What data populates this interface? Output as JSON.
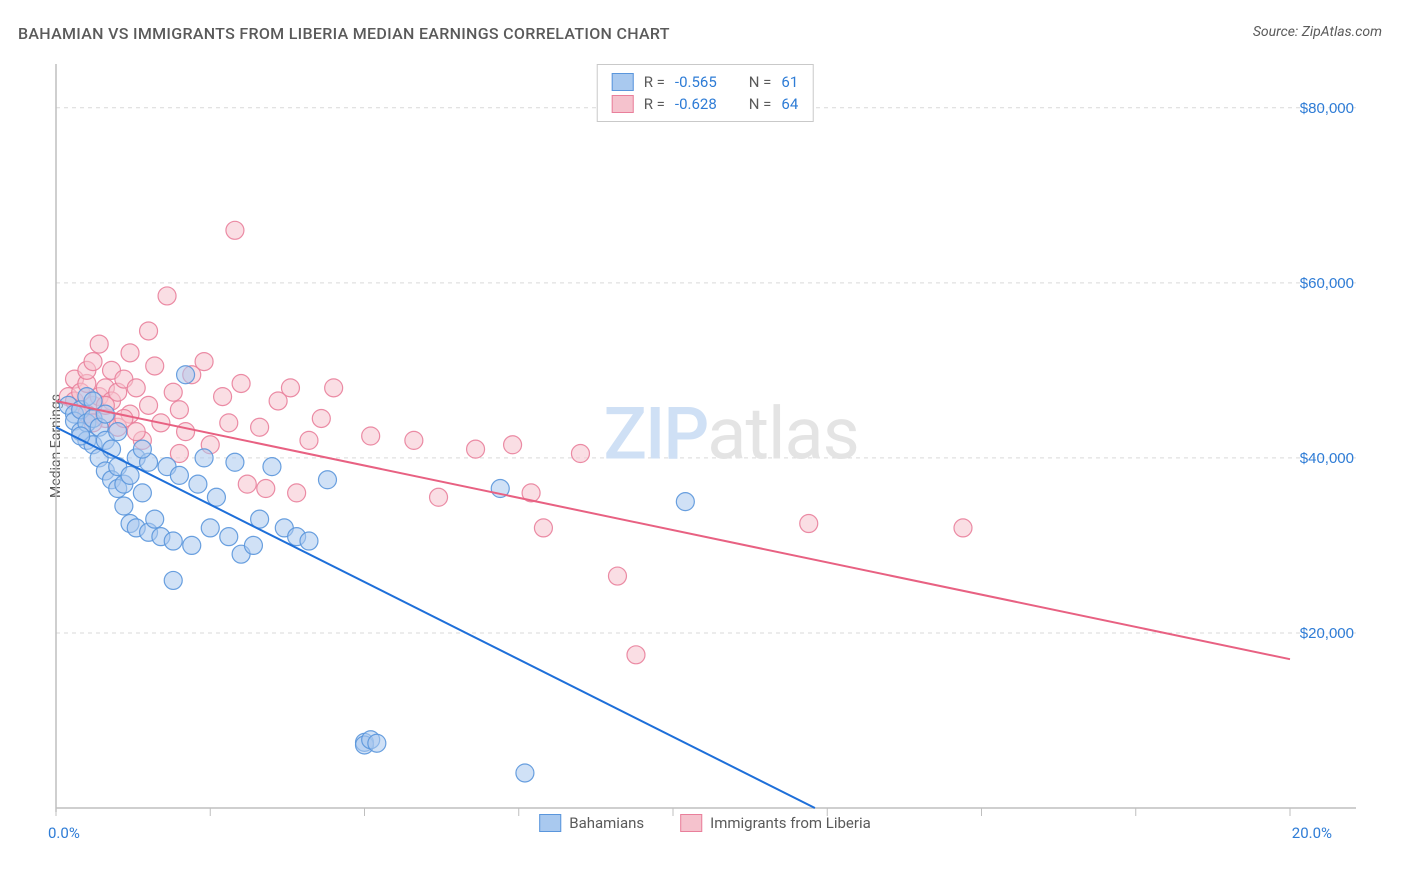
{
  "title": "BAHAMIAN VS IMMIGRANTS FROM LIBERIA MEDIAN EARNINGS CORRELATION CHART",
  "source_label": "Source: ",
  "source_name": "ZipAtlas.com",
  "y_axis_label": "Median Earnings",
  "watermark_left": "ZIP",
  "watermark_right": "atlas",
  "chart": {
    "type": "scatter",
    "xlim": [
      0,
      20
    ],
    "ylim": [
      0,
      85000
    ],
    "x_ticks": [
      0,
      2.5,
      5,
      7.5,
      10,
      12.5,
      15,
      17.5,
      20
    ],
    "x_tick_labels_shown": {
      "0": "0.0%",
      "20": "20.0%"
    },
    "y_ticks": [
      20000,
      40000,
      60000,
      80000
    ],
    "y_tick_labels": [
      "$20,000",
      "$40,000",
      "$60,000",
      "$80,000"
    ],
    "grid_color": "#d9d9d9",
    "axis_color": "#bfbfbf",
    "background_color": "#ffffff",
    "marker_radius": 9,
    "marker_opacity": 0.55,
    "marker_stroke_opacity": 0.9,
    "line_width": 2,
    "series": [
      {
        "name": "Bahamians",
        "color_fill": "#a9c9ef",
        "color_stroke": "#5a96dc",
        "line_color": "#1e6fd9",
        "R": "-0.565",
        "N": "61",
        "trend": {
          "x1": 0,
          "y1": 43500,
          "x2": 12.3,
          "y2": 0
        },
        "points": [
          [
            0.2,
            46000
          ],
          [
            0.3,
            45000
          ],
          [
            0.3,
            44200
          ],
          [
            0.4,
            45500
          ],
          [
            0.4,
            43000
          ],
          [
            0.5,
            44000
          ],
          [
            0.5,
            47000
          ],
          [
            0.5,
            42000
          ],
          [
            0.6,
            44500
          ],
          [
            0.6,
            41500
          ],
          [
            0.7,
            43500
          ],
          [
            0.7,
            40000
          ],
          [
            0.8,
            42000
          ],
          [
            0.8,
            38500
          ],
          [
            0.9,
            37500
          ],
          [
            0.9,
            41000
          ],
          [
            1.0,
            36500
          ],
          [
            1.0,
            39000
          ],
          [
            1.1,
            37000
          ],
          [
            1.1,
            34500
          ],
          [
            1.2,
            32500
          ],
          [
            1.2,
            38000
          ],
          [
            1.3,
            40000
          ],
          [
            1.3,
            32000
          ],
          [
            1.4,
            36000
          ],
          [
            1.5,
            31500
          ],
          [
            1.5,
            39500
          ],
          [
            1.6,
            33000
          ],
          [
            1.7,
            31000
          ],
          [
            1.8,
            39000
          ],
          [
            1.9,
            30500
          ],
          [
            2.0,
            38000
          ],
          [
            2.1,
            49500
          ],
          [
            2.2,
            30000
          ],
          [
            2.3,
            37000
          ],
          [
            2.4,
            40000
          ],
          [
            2.5,
            32000
          ],
          [
            2.6,
            35500
          ],
          [
            2.8,
            31000
          ],
          [
            2.9,
            39500
          ],
          [
            3.0,
            29000
          ],
          [
            3.2,
            30000
          ],
          [
            3.3,
            33000
          ],
          [
            3.5,
            39000
          ],
          [
            3.7,
            32000
          ],
          [
            3.9,
            31000
          ],
          [
            4.1,
            30500
          ],
          [
            4.4,
            37500
          ],
          [
            5.0,
            7500
          ],
          [
            5.0,
            7200
          ],
          [
            5.1,
            7800
          ],
          [
            5.2,
            7400
          ],
          [
            7.2,
            36500
          ],
          [
            7.6,
            4000
          ],
          [
            10.2,
            35000
          ],
          [
            1.9,
            26000
          ],
          [
            0.6,
            46500
          ],
          [
            0.4,
            42500
          ],
          [
            0.8,
            45000
          ],
          [
            1.0,
            43000
          ],
          [
            1.4,
            41000
          ]
        ]
      },
      {
        "name": "Immigrants from Liberia",
        "color_fill": "#f5c2cd",
        "color_stroke": "#e97f9b",
        "line_color": "#e86182",
        "R": "-0.628",
        "N": "64",
        "trend": {
          "x1": 0,
          "y1": 46500,
          "x2": 20,
          "y2": 17000
        },
        "points": [
          [
            0.2,
            47000
          ],
          [
            0.3,
            46500
          ],
          [
            0.3,
            49000
          ],
          [
            0.4,
            47500
          ],
          [
            0.4,
            45500
          ],
          [
            0.5,
            48500
          ],
          [
            0.5,
            50000
          ],
          [
            0.6,
            46000
          ],
          [
            0.6,
            51000
          ],
          [
            0.7,
            47000
          ],
          [
            0.7,
            53000
          ],
          [
            0.8,
            48000
          ],
          [
            0.8,
            44500
          ],
          [
            0.9,
            46500
          ],
          [
            0.9,
            50000
          ],
          [
            1.0,
            47500
          ],
          [
            1.0,
            43500
          ],
          [
            1.1,
            49000
          ],
          [
            1.2,
            52000
          ],
          [
            1.2,
            45000
          ],
          [
            1.3,
            48000
          ],
          [
            1.4,
            42000
          ],
          [
            1.5,
            46000
          ],
          [
            1.5,
            54500
          ],
          [
            1.6,
            50500
          ],
          [
            1.7,
            44000
          ],
          [
            1.8,
            58500
          ],
          [
            1.9,
            47500
          ],
          [
            2.0,
            45500
          ],
          [
            2.1,
            43000
          ],
          [
            2.2,
            49500
          ],
          [
            2.4,
            51000
          ],
          [
            2.5,
            41500
          ],
          [
            2.7,
            47000
          ],
          [
            2.8,
            44000
          ],
          [
            2.9,
            66000
          ],
          [
            3.0,
            48500
          ],
          [
            3.1,
            37000
          ],
          [
            3.3,
            43500
          ],
          [
            3.4,
            36500
          ],
          [
            3.6,
            46500
          ],
          [
            3.8,
            48000
          ],
          [
            3.9,
            36000
          ],
          [
            4.1,
            42000
          ],
          [
            4.3,
            44500
          ],
          [
            4.5,
            48000
          ],
          [
            5.1,
            42500
          ],
          [
            5.8,
            42000
          ],
          [
            6.2,
            35500
          ],
          [
            6.8,
            41000
          ],
          [
            7.4,
            41500
          ],
          [
            7.7,
            36000
          ],
          [
            7.9,
            32000
          ],
          [
            8.5,
            40500
          ],
          [
            9.1,
            26500
          ],
          [
            9.4,
            17500
          ],
          [
            12.2,
            32500
          ],
          [
            14.7,
            32000
          ],
          [
            0.5,
            45000
          ],
          [
            0.6,
            44000
          ],
          [
            0.8,
            46000
          ],
          [
            1.1,
            44500
          ],
          [
            1.3,
            43000
          ],
          [
            2.0,
            40500
          ]
        ]
      }
    ]
  },
  "stats_box": {
    "r_label": "R =",
    "n_label": "N ="
  },
  "legend": {
    "item1": "Bahamians",
    "item2": "Immigrants from Liberia"
  }
}
